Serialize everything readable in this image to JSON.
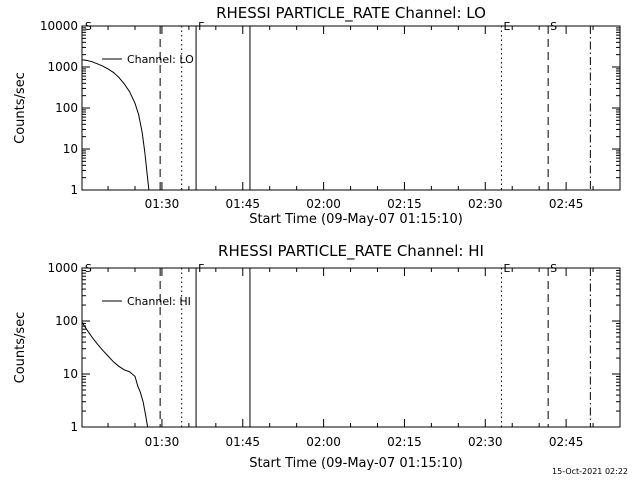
{
  "chart_data": [
    {
      "type": "line",
      "title": "RHESSI PARTICLE_RATE Channel: LO",
      "xlabel": "Start Time (09-May-07 01:15:10)",
      "ylabel": "Counts/sec",
      "y_scale": "log",
      "ylim": [
        1,
        10000
      ],
      "y_ticks": [
        1,
        10,
        100,
        1000,
        10000
      ],
      "y_tick_labels": [
        "1",
        "10",
        "100",
        "1000",
        "10000"
      ],
      "xlim": [
        "01:15:10",
        "02:55:00"
      ],
      "x_ticks": [
        "01:30",
        "01:45",
        "02:00",
        "02:15",
        "02:30",
        "02:45"
      ],
      "legend": {
        "label": "Channel: LO",
        "position": "top-left"
      },
      "series": [
        {
          "name": "Channel: LO",
          "points": [
            [
              "01:15:10",
              1500
            ],
            [
              "01:16:00",
              1450
            ],
            [
              "01:17:00",
              1350
            ],
            [
              "01:18:00",
              1200
            ],
            [
              "01:19:00",
              1050
            ],
            [
              "01:20:00",
              900
            ],
            [
              "01:21:00",
              740
            ],
            [
              "01:22:00",
              560
            ],
            [
              "01:23:00",
              390
            ],
            [
              "01:24:00",
              250
            ],
            [
              "01:25:00",
              130
            ],
            [
              "01:25:40",
              70
            ],
            [
              "01:26:20",
              25
            ],
            [
              "01:26:50",
              8
            ],
            [
              "01:27:15",
              2.5
            ],
            [
              "01:27:35",
              1
            ]
          ]
        }
      ],
      "markers": [
        {
          "time": "01:15:20",
          "style": "none",
          "label": "S"
        },
        {
          "time": "01:29:40",
          "style": "dashed",
          "label": ""
        },
        {
          "time": "01:33:40",
          "style": "dotted",
          "label": ""
        },
        {
          "time": "01:36:20",
          "style": "solid",
          "label": "F"
        },
        {
          "time": "01:46:20",
          "style": "solid",
          "label": ""
        },
        {
          "time": "02:33:00",
          "style": "dotted",
          "label": "E"
        },
        {
          "time": "02:41:40",
          "style": "dashed",
          "label": "S"
        },
        {
          "time": "02:49:30",
          "style": "dashdot",
          "label": ""
        }
      ]
    },
    {
      "type": "line",
      "title": "RHESSI PARTICLE_RATE Channel: HI",
      "xlabel": "Start Time (09-May-07 01:15:10)",
      "ylabel": "Counts/sec",
      "y_scale": "log",
      "ylim": [
        1,
        1000
      ],
      "y_ticks": [
        1,
        10,
        100,
        1000
      ],
      "y_tick_labels": [
        "1",
        "10",
        "100",
        "1000"
      ],
      "xlim": [
        "01:15:10",
        "02:55:00"
      ],
      "x_ticks": [
        "01:30",
        "01:45",
        "02:00",
        "02:15",
        "02:30",
        "02:45"
      ],
      "legend": {
        "label": "Channel: HI",
        "position": "top-left"
      },
      "series": [
        {
          "name": "Channel: HI",
          "points": [
            [
              "01:15:10",
              95
            ],
            [
              "01:16:00",
              70
            ],
            [
              "01:17:00",
              50
            ],
            [
              "01:18:00",
              37
            ],
            [
              "01:19:00",
              28
            ],
            [
              "01:20:00",
              22
            ],
            [
              "01:21:00",
              17
            ],
            [
              "01:22:00",
              14
            ],
            [
              "01:23:00",
              12
            ],
            [
              "01:24:00",
              11
            ],
            [
              "01:25:00",
              9
            ],
            [
              "01:25:30",
              6
            ],
            [
              "01:26:00",
              4.5
            ],
            [
              "01:26:30",
              3
            ],
            [
              "01:27:00",
              1.6
            ],
            [
              "01:27:20",
              1
            ]
          ]
        }
      ],
      "markers": [
        {
          "time": "01:15:20",
          "style": "none",
          "label": "S"
        },
        {
          "time": "01:29:40",
          "style": "dashed",
          "label": ""
        },
        {
          "time": "01:33:40",
          "style": "dotted",
          "label": ""
        },
        {
          "time": "01:36:20",
          "style": "solid",
          "label": "F"
        },
        {
          "time": "01:46:20",
          "style": "solid",
          "label": ""
        },
        {
          "time": "02:33:00",
          "style": "dotted",
          "label": "E"
        },
        {
          "time": "02:41:40",
          "style": "dashed",
          "label": "S"
        },
        {
          "time": "02:49:30",
          "style": "dashdot",
          "label": ""
        }
      ]
    }
  ],
  "footer": {
    "timestamp": "15-Oct-2021 02:22"
  }
}
